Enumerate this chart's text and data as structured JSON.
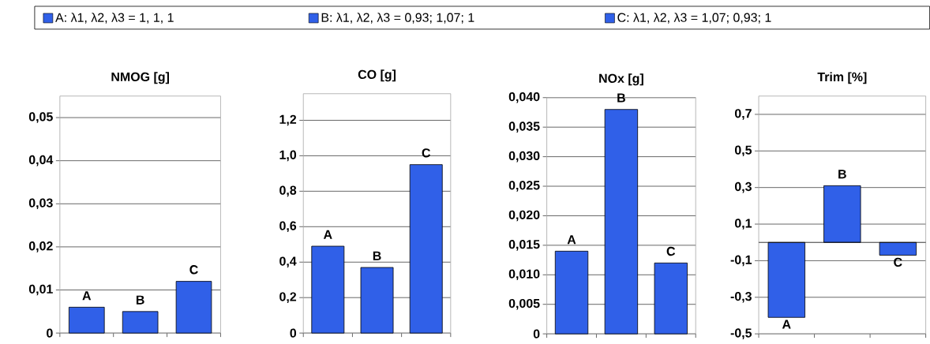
{
  "chart_data": [
    {
      "type": "other",
      "color": "#3060e8",
      "annotations": [
        "A:  λ1, λ2, λ3 = 1, 1, 1",
        "B:  λ1, λ2, λ3 = 0,93; 1,07; 1",
        "C:  λ1, λ2, λ3 = 1,07; 0,93; 1"
      ]
    },
    {
      "type": "bar",
      "title": "NMOG [g]",
      "categories": [
        "A",
        "B",
        "C"
      ],
      "values": [
        0.006,
        0.005,
        0.012
      ],
      "color": "#3060e8",
      "ylim": [
        0,
        0.055
      ],
      "yticks": [
        0,
        {
          "value": 0.01,
          "label": "0,01"
        },
        {
          "value": 0.02,
          "label": "0,02"
        },
        {
          "value": 0.03,
          "label": "0,03"
        },
        {
          "value": 0.04,
          "label": "0,04"
        },
        {
          "value": 0.05,
          "label": "0,05"
        }
      ],
      "grid": "y"
    },
    {
      "type": "bar",
      "title": "CO [g]",
      "categories": [
        "A",
        "B",
        "C"
      ],
      "values": [
        0.49,
        0.37,
        0.95
      ],
      "color": "#3060e8",
      "ylim": [
        0,
        1.35
      ],
      "yticks": [
        0,
        {
          "value": 0.2,
          "label": "0,2"
        },
        {
          "value": 0.4,
          "label": "0,4"
        },
        {
          "value": 0.6,
          "label": "0,6"
        },
        {
          "value": 0.8,
          "label": "0,8"
        },
        {
          "value": 1.0,
          "label": "1,0"
        },
        {
          "value": 1.2,
          "label": "1,2"
        }
      ],
      "grid": "y"
    },
    {
      "type": "bar",
      "title": "NOx [g]",
      "categories": [
        "A",
        "B",
        "C"
      ],
      "values": [
        0.014,
        0.038,
        0.012
      ],
      "color": "#3060e8",
      "ylim": [
        0,
        0.04
      ],
      "yticks": [
        0,
        {
          "value": 0.005,
          "label": "0,005"
        },
        {
          "value": 0.01,
          "label": "0,010"
        },
        {
          "value": 0.015,
          "label": "0,015"
        },
        {
          "value": 0.02,
          "label": "0,020"
        },
        {
          "value": 0.025,
          "label": "0,025"
        },
        {
          "value": 0.03,
          "label": "0,030"
        },
        {
          "value": 0.035,
          "label": "0,035"
        },
        {
          "value": 0.04,
          "label": "0,040"
        }
      ],
      "grid": "y"
    },
    {
      "type": "bar",
      "title": "Trim [%]",
      "categories": [
        "A",
        "B",
        "C"
      ],
      "values": [
        -0.41,
        0.31,
        -0.07
      ],
      "color": "#3060e8",
      "ylim": [
        -0.5,
        0.8
      ],
      "yticks": [
        {
          "value": -0.5,
          "label": "-0,5"
        },
        {
          "value": -0.3,
          "label": "-0,3"
        },
        {
          "value": -0.1,
          "label": "-0,1"
        },
        {
          "value": 0.1,
          "label": "0,1"
        },
        {
          "value": 0.3,
          "label": "0,3"
        },
        {
          "value": 0.5,
          "label": "0,5"
        },
        {
          "value": 0.7,
          "label": "0,7"
        }
      ],
      "grid": "y"
    }
  ]
}
